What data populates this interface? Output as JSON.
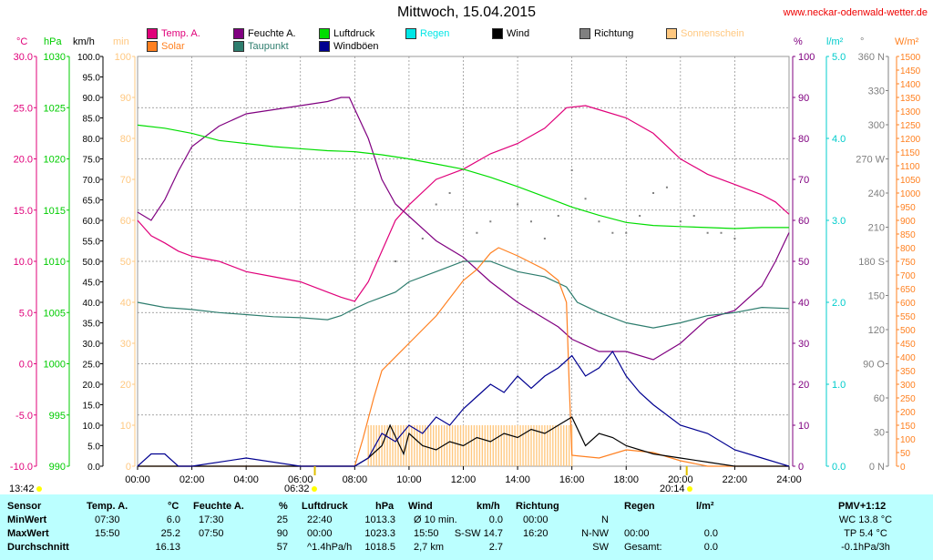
{
  "header": {
    "title": "Mittwoch, 15.04.2015",
    "site": "www.neckar-odenwald-wetter.de"
  },
  "legend": [
    {
      "label": "Temp. A.",
      "color": "#e0007a"
    },
    {
      "label": "Feuchte A.",
      "color": "#800080"
    },
    {
      "label": "Luftdruck",
      "color": "#00dd00"
    },
    {
      "label": "Regen",
      "color": "#00e6e6"
    },
    {
      "label": "Wind",
      "color": "#000000"
    },
    {
      "label": "Richtung",
      "color": "#808080"
    },
    {
      "label": "Sonnenschein",
      "color": "#ffc880"
    },
    {
      "label": "Solar",
      "color": "#ff8020"
    },
    {
      "label": "Taupunkt",
      "color": "#2e7d6e"
    },
    {
      "label": "Windböen",
      "color": "#000090"
    }
  ],
  "axes": {
    "temp": {
      "unit": "°C",
      "color": "#e0007a",
      "ticks": [
        "30.0",
        "25.0",
        "20.0",
        "15.0",
        "10.0",
        "5.0",
        "0.0",
        "-5.0",
        "-10.0"
      ]
    },
    "press": {
      "unit": "hPa",
      "color": "#00cc00",
      "ticks": [
        "1030",
        "1025",
        "1020",
        "1015",
        "1010",
        "1005",
        "1000",
        "995",
        "990"
      ]
    },
    "wind": {
      "unit": "km/h",
      "color": "#000000",
      "ticks": [
        "100.0",
        "95.0",
        "90.0",
        "85.0",
        "80.0",
        "75.0",
        "70.0",
        "65.0",
        "60.0",
        "55.0",
        "50.0",
        "45.0",
        "40.0",
        "35.0",
        "30.0",
        "25.0",
        "20.0",
        "15.0",
        "10.0",
        "5.0",
        "0.0"
      ]
    },
    "sun": {
      "unit": "min",
      "color": "#ffc880",
      "ticks": [
        "100",
        "90",
        "80",
        "70",
        "60",
        "50",
        "40",
        "30",
        "20",
        "10",
        "0"
      ]
    },
    "hum_l": {
      "unit": "%",
      "color": "#800080",
      "ticks": [
        "100",
        "90",
        "80",
        "70",
        "60",
        "50",
        "40",
        "30",
        "20",
        "10",
        "0"
      ]
    },
    "rain": {
      "unit": "l/m²",
      "color": "#00cccc",
      "ticks": [
        "5.0",
        "4.0",
        "3.0",
        "2.0",
        "1.0",
        "0.0"
      ]
    },
    "dir": {
      "unit": "°",
      "color": "#808080",
      "ticks": [
        "360 N",
        "330",
        "300",
        "270 W",
        "240",
        "210",
        "180 S",
        "150",
        "120",
        "90 O",
        "60",
        "30",
        "0 N"
      ]
    },
    "solar": {
      "unit": "W/m²",
      "color": "#ff8020",
      "ticks": [
        "1500",
        "1450",
        "1400",
        "1350",
        "1300",
        "1250",
        "1200",
        "1150",
        "1100",
        "1050",
        "1000",
        "950",
        "900",
        "850",
        "800",
        "750",
        "700",
        "650",
        "600",
        "550",
        "500",
        "450",
        "400",
        "350",
        "300",
        "250",
        "200",
        "150",
        "100",
        "50",
        "0"
      ]
    },
    "x": {
      "ticks": [
        "00:00",
        "02:00",
        "04:00",
        "06:00",
        "08:00",
        "10:00",
        "12:00",
        "14:00",
        "16:00",
        "18:00",
        "20:00",
        "22:00",
        "24:00"
      ]
    }
  },
  "sun_events": {
    "rise_marker": "13:42",
    "sunrise": "06:32",
    "sunset": "20:14"
  },
  "chart_data": {
    "type": "line",
    "title": "Mittwoch, 15.04.2015",
    "x_unit": "hour",
    "xlim": [
      0,
      24
    ],
    "series": [
      {
        "name": "Temp. A.",
        "axis": "°C",
        "color": "#e0007a",
        "x": [
          0,
          0.5,
          1,
          1.5,
          2,
          3,
          4,
          5,
          6,
          7,
          7.5,
          8,
          8.5,
          9,
          9.5,
          10,
          11,
          12,
          13,
          14,
          15,
          15.8,
          16.5,
          17,
          18,
          19,
          20,
          21,
          22,
          23,
          23.5,
          24
        ],
        "y": [
          14,
          12.5,
          11.8,
          11,
          10.5,
          10,
          9,
          8.5,
          8,
          7,
          6.5,
          6.1,
          8,
          11,
          14,
          15.5,
          18,
          19,
          20.5,
          21.5,
          23,
          25,
          25.2,
          24.8,
          24,
          22.5,
          20,
          18.5,
          17.5,
          16.5,
          15.8,
          14.6
        ]
      },
      {
        "name": "Feuchte A.",
        "axis": "%",
        "color": "#800080",
        "x": [
          0,
          0.5,
          1,
          1.5,
          2,
          3,
          4,
          5,
          6,
          7,
          7.5,
          7.8,
          8.5,
          9,
          9.5,
          10,
          11,
          12,
          13,
          14,
          15,
          15.5,
          16,
          17,
          18,
          19,
          20,
          21,
          22,
          23,
          23.5,
          24
        ],
        "y": [
          62,
          60,
          65,
          72,
          78,
          83,
          86,
          87,
          88,
          89,
          90,
          90,
          80,
          70,
          64,
          61,
          55,
          51,
          45,
          40,
          36,
          34,
          31,
          28,
          28,
          26,
          30,
          36,
          38,
          44,
          50,
          57
        ]
      },
      {
        "name": "Luftdruck",
        "axis": "hPa",
        "color": "#00dd00",
        "x": [
          0,
          1,
          2,
          3,
          4,
          5,
          6,
          7,
          8,
          9,
          10,
          11,
          12,
          13,
          14,
          15,
          16,
          17,
          18,
          19,
          20,
          21,
          22,
          23,
          24
        ],
        "y": [
          1023.3,
          1023,
          1022.5,
          1021.8,
          1021.5,
          1021.2,
          1021,
          1020.8,
          1020.7,
          1020.4,
          1020,
          1019.5,
          1019,
          1018.2,
          1017.3,
          1016.3,
          1015.3,
          1014.5,
          1013.8,
          1013.5,
          1013.4,
          1013.3,
          1013.2,
          1013.3,
          1013.3
        ]
      },
      {
        "name": "Taupunkt",
        "axis": "°C",
        "color": "#2e7d6e",
        "x": [
          0,
          1,
          2,
          3,
          4,
          5,
          6,
          7,
          7.5,
          8,
          8.5,
          9,
          9.5,
          10,
          11,
          12,
          13,
          14,
          15,
          15.8,
          16.2,
          17,
          18,
          19,
          20,
          21,
          22,
          23,
          24
        ],
        "y": [
          6,
          5.5,
          5.3,
          5,
          4.8,
          4.6,
          4.5,
          4.3,
          4.7,
          5.4,
          6,
          6.5,
          7,
          8,
          9,
          10,
          10,
          9,
          8.5,
          7.5,
          6,
          5,
          4,
          3.5,
          4,
          4.7,
          5,
          5.5,
          5.4
        ]
      },
      {
        "name": "Solar",
        "axis": "W/m²",
        "color": "#ff8020",
        "x": [
          0,
          8,
          8.3,
          8.7,
          9,
          10,
          11,
          12,
          12.5,
          13,
          13.3,
          14,
          15,
          15.5,
          15.8,
          15.9,
          16,
          17,
          18,
          19,
          20,
          21,
          24
        ],
        "y": [
          0,
          0,
          100,
          250,
          350,
          450,
          550,
          680,
          720,
          780,
          800,
          770,
          720,
          680,
          600,
          300,
          40,
          30,
          60,
          50,
          20,
          0,
          0
        ]
      },
      {
        "name": "Wind",
        "axis": "km/h",
        "color": "#000000",
        "x": [
          0,
          2,
          5,
          7,
          8,
          8.5,
          9,
          9.3,
          9.8,
          10,
          10.5,
          11,
          11.5,
          12,
          12.5,
          13,
          13.5,
          14,
          14.5,
          15,
          15.5,
          16,
          16.5,
          17,
          17.5,
          18,
          19,
          20,
          21,
          22,
          24
        ],
        "y": [
          0,
          0,
          0,
          0,
          0,
          2,
          5,
          10,
          3,
          8,
          5,
          4,
          6,
          5,
          7,
          6,
          8,
          7,
          9,
          8,
          10,
          12,
          5,
          8,
          7,
          5,
          3,
          2,
          1,
          0,
          0
        ]
      },
      {
        "name": "Windböen",
        "axis": "km/h",
        "color": "#000090",
        "x": [
          0,
          0.5,
          1,
          1.5,
          2,
          4,
          6,
          8,
          8.5,
          9,
          9.5,
          10,
          10.5,
          11,
          11.5,
          12,
          12.5,
          13,
          13.5,
          14,
          14.5,
          15,
          15.5,
          16,
          16.5,
          17,
          17.5,
          18,
          18.5,
          19,
          20,
          21,
          22,
          23,
          24
        ],
        "y": [
          0,
          3,
          3,
          0,
          0,
          2,
          0,
          0,
          2,
          8,
          6,
          10,
          8,
          12,
          10,
          14,
          17,
          20,
          18,
          22,
          19,
          22,
          24,
          27,
          22,
          24,
          28,
          22,
          18,
          15,
          10,
          8,
          4,
          2,
          0
        ]
      },
      {
        "name": "Sonnenschein",
        "axis": "min",
        "color": "#ffc880",
        "type": "bar",
        "range": [
          8.5,
          16
        ],
        "value": 10
      }
    ],
    "direction_points": {
      "name": "Richtung",
      "axis": "°",
      "color": "#808080",
      "x": [
        9.5,
        10.5,
        11,
        11.5,
        12,
        12.5,
        13,
        14,
        14.5,
        15,
        15.5,
        16,
        16.5,
        17,
        17.5,
        18,
        18.5,
        19,
        19.5,
        20,
        20.5,
        21,
        21.5,
        22
      ],
      "y": [
        180,
        200,
        230,
        240,
        180,
        205,
        215,
        230,
        215,
        200,
        220,
        260,
        235,
        215,
        205,
        205,
        220,
        240,
        245,
        215,
        220,
        205,
        205,
        200
      ]
    }
  },
  "table": {
    "headers": {
      "sensor": "Sensor",
      "temp": "Temp. A.",
      "temp_u": "°C",
      "hum": "Feuchte A.",
      "hum_u": "%",
      "press": "Luftdruck",
      "press_u": "hPa",
      "wind": "Wind",
      "wind_u": "km/h",
      "dir": "Richtung",
      "rain": "Regen",
      "rain_u": "l/m²",
      "pmv": "PMV+1:12"
    },
    "rows": [
      {
        "label": "MinWert",
        "temp_t": "07:30",
        "temp_v": "6.0",
        "hum_t": "17:30",
        "hum_v": "25",
        "press_t": "22:40",
        "press_v": "1013.3",
        "wind_t": "Ø 10 min.",
        "wind_v": "0.0",
        "dir_t": "00:00",
        "dir_v": "N",
        "rain_t": "",
        "rain_v": "",
        "pmv": "WC 13.8 °C"
      },
      {
        "label": "MaxWert",
        "temp_t": "15:50",
        "temp_v": "25.2",
        "hum_t": "07:50",
        "hum_v": "90",
        "press_t": "00:00",
        "press_v": "1023.3",
        "wind_t": "15:50",
        "wind_v": "S-SW 14.7",
        "dir_t": "16:20",
        "dir_v": "N-NW",
        "rain_t": "00:00",
        "rain_v": "0.0",
        "pmv": "TP 5.4 °C"
      },
      {
        "label": "Durchschnitt",
        "temp_t": "",
        "temp_v": "16.13",
        "hum_t": "",
        "hum_v": "57",
        "press_t": "^1.4hPa/h",
        "press_v": "1018.5",
        "wind_t": "2,7 km",
        "wind_v": "2.7",
        "dir_t": "",
        "dir_v": "SW",
        "rain_t": "Gesamt:",
        "rain_v": "0.0",
        "pmv": "-0.1hPa/3h"
      }
    ]
  }
}
